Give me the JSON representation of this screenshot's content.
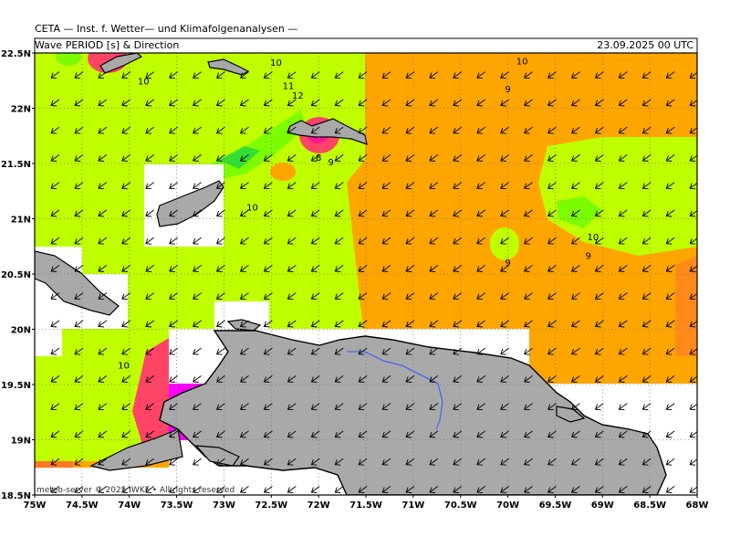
{
  "header": {
    "title": "CETA — Inst. f. Wetter— und Klimafolgenanalysen —",
    "subtitle": "Wave PERIOD [s] & Direction",
    "timestamp": "23.09.2025 00 UTC"
  },
  "credit": "meteo-server © 2025 IWKF • All rights reserved",
  "axes": {
    "lat_labels": [
      "22.5N",
      "22N",
      "21.5N",
      "21N",
      "20.5N",
      "20N",
      "19.5N",
      "19N",
      "18.5N"
    ],
    "lon_labels": [
      "75W",
      "74.5W",
      "74W",
      "73.5W",
      "73W",
      "72.5W",
      "72W",
      "71.5W",
      "71W",
      "70.5W",
      "70W",
      "69.5W",
      "69W",
      "68.5W",
      "68W"
    ]
  },
  "contour_labels": [
    {
      "text": "10",
      "lon": -72.45,
      "lat": 22.41
    },
    {
      "text": "11",
      "lon": -72.32,
      "lat": 22.2
    },
    {
      "text": "12",
      "lon": -72.22,
      "lat": 22.11
    },
    {
      "text": "10",
      "lon": -73.85,
      "lat": 22.24
    },
    {
      "text": "8",
      "lon": -72.0,
      "lat": 21.55
    },
    {
      "text": "9",
      "lon": -71.87,
      "lat": 21.51
    },
    {
      "text": "10",
      "lon": -72.7,
      "lat": 21.1
    },
    {
      "text": "10",
      "lon": -69.85,
      "lat": 22.42
    },
    {
      "text": "9",
      "lon": -70.0,
      "lat": 22.17
    },
    {
      "text": "10",
      "lon": -69.1,
      "lat": 20.83
    },
    {
      "text": "9",
      "lon": -69.15,
      "lat": 20.66
    },
    {
      "text": "9",
      "lon": -70.0,
      "lat": 20.6
    },
    {
      "text": "10",
      "lon": -74.06,
      "lat": 19.67
    }
  ],
  "colors": {
    "period_9_10": "#ffa500",
    "period_10_11": "#bfff00",
    "period_11_12": "#7cfc00",
    "period_12_13": "#33dd33",
    "period_13_14": "#ff4466",
    "period_14_plus": "#ff00ff",
    "land": "#a9a9a9",
    "coast": "#000000"
  },
  "wave_direction": "from northeast"
}
